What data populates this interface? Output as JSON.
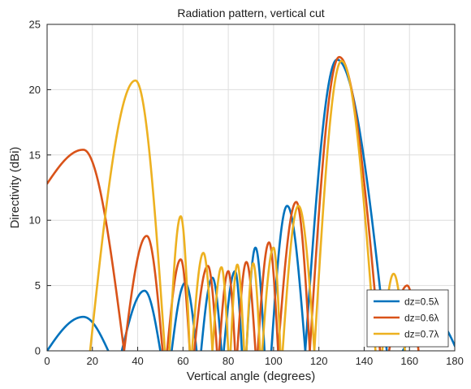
{
  "chart_data": {
    "type": "line",
    "title": "Radiation pattern, vertical cut",
    "xlabel": "Vertical angle (degrees)",
    "ylabel": "Directivity (dBi)",
    "xlim": [
      0,
      180
    ],
    "ylim": [
      0,
      25
    ],
    "x_ticks": [
      "0",
      "20",
      "40",
      "60",
      "80",
      "100",
      "120",
      "140",
      "160",
      "180"
    ],
    "y_ticks": [
      "0",
      "5",
      "10",
      "15",
      "20",
      "25"
    ],
    "grid": true,
    "legend_position": "bottom-right",
    "series": [
      {
        "name": "dz=0.5λ",
        "color": "#0072BD",
        "lobes": [
          [
            [
              0,
              0
            ],
            [
              16,
              2.6
            ],
            [
              27,
              0
            ]
          ],
          [
            [
              33,
              0
            ],
            [
              43,
              4.6
            ],
            [
              50,
              0
            ]
          ],
          [
            [
              55,
              0
            ],
            [
              61,
              5.2
            ],
            [
              66,
              0
            ]
          ],
          [
            [
              68,
              0
            ],
            [
              73,
              5.6
            ],
            [
              77,
              0
            ]
          ],
          [
            [
              78,
              0
            ],
            [
              83,
              6.1
            ],
            [
              86,
              0
            ]
          ],
          [
            [
              88,
              0
            ],
            [
              92,
              7.9
            ],
            [
              96,
              0
            ]
          ],
          [
            [
              99,
              0
            ],
            [
              106,
              11.1
            ],
            [
              114,
              0
            ]
          ],
          [
            [
              114,
              0
            ],
            [
              128,
              22.3
            ],
            [
              150,
              0
            ]
          ],
          [
            [
              157,
              0
            ],
            [
              171,
              2.5
            ],
            [
              181,
              0
            ]
          ]
        ]
      },
      {
        "name": "dz=0.6λ",
        "color": "#D95319",
        "lobes": [
          [
            [
              0,
              12.8
            ],
            [
              16,
              15.4
            ],
            [
              34,
              0
            ]
          ],
          [
            [
              34,
              0
            ],
            [
              44,
              8.8
            ],
            [
              51,
              0
            ]
          ],
          [
            [
              53,
              0
            ],
            [
              59,
              7.0
            ],
            [
              63,
              0
            ]
          ],
          [
            [
              65,
              0
            ],
            [
              71,
              6.5
            ],
            [
              75,
              0
            ]
          ],
          [
            [
              76,
              0
            ],
            [
              80,
              6.1
            ],
            [
              83,
              0
            ]
          ],
          [
            [
              84,
              0
            ],
            [
              88,
              6.8
            ],
            [
              92,
              0
            ]
          ],
          [
            [
              93,
              0
            ],
            [
              98,
              8.3
            ],
            [
              102,
              0
            ]
          ],
          [
            [
              102,
              0
            ],
            [
              110,
              11.4
            ],
            [
              116,
              0
            ]
          ],
          [
            [
              116,
              0
            ],
            [
              129,
              22.5
            ],
            [
              147,
              0
            ]
          ],
          [
            [
              151,
              0
            ],
            [
              159,
              5.0
            ],
            [
              164,
              0
            ]
          ]
        ]
      },
      {
        "name": "dz=0.7λ",
        "color": "#EDB120",
        "lobes": [
          [
            [
              19,
              0
            ],
            [
              39,
              20.7
            ],
            [
              52,
              0
            ]
          ],
          [
            [
              54,
              0
            ],
            [
              59,
              10.3
            ],
            [
              63,
              0
            ]
          ],
          [
            [
              64,
              0
            ],
            [
              69,
              7.5
            ],
            [
              73,
              0
            ]
          ],
          [
            [
              73,
              0
            ],
            [
              77,
              6.4
            ],
            [
              80,
              0
            ]
          ],
          [
            [
              81,
              0
            ],
            [
              84,
              6.6
            ],
            [
              87,
              0
            ]
          ],
          [
            [
              88,
              0
            ],
            [
              91,
              6.7
            ],
            [
              94,
              0
            ]
          ],
          [
            [
              95,
              0
            ],
            [
              100,
              7.9
            ],
            [
              103,
              0
            ]
          ],
          [
            [
              104,
              0
            ],
            [
              111,
              11.1
            ],
            [
              118,
              0
            ]
          ],
          [
            [
              118,
              0
            ],
            [
              130,
              22.2
            ],
            [
              145,
              0
            ]
          ],
          [
            [
              148,
              0
            ],
            [
              153,
              5.9
            ],
            [
              158,
              0
            ]
          ]
        ]
      }
    ]
  }
}
